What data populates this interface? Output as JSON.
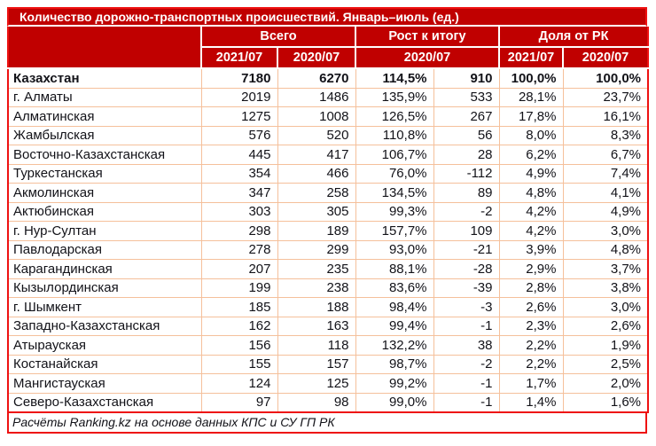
{
  "title": "Количество дорожно-транспортных происшествий. Январь–июль (ед.)",
  "footer": "Расчёты Ranking.kz на основе данных КПС и СУ ГП РК",
  "colors": {
    "header_bg": "#C00000",
    "outer_border": "#EE1111",
    "cell_border": "#F5C09B",
    "header_text": "#FFFFFF",
    "body_text": "#121218"
  },
  "chart_data": {
    "type": "table",
    "title": "Количество дорожно-транспортных происшествий. Январь–июль (ед.)",
    "source_note": "Расчёты Ranking.kz на основе данных КПС и СУ ГП РК",
    "groups": [
      {
        "label": "Всего",
        "sub": [
          "2021/07",
          "2020/07"
        ]
      },
      {
        "label": "Рост к итогу",
        "sub": [
          "2020/07"
        ]
      },
      {
        "label": "Доля от РК",
        "sub": [
          "2021/07",
          "2020/07"
        ]
      }
    ],
    "value_columns": [
      "Всего 2021/07",
      "Всего 2020/07",
      "Рост к итогу 2020/07 (%)",
      "Рост к итогу 2020/07 (абс.)",
      "Доля от РК 2021/07",
      "Доля от РК 2020/07"
    ],
    "rows": [
      {
        "region": "Казахстан",
        "bold": true,
        "values": [
          "7180",
          "6270",
          "114,5%",
          "910",
          "100,0%",
          "100,0%"
        ]
      },
      {
        "region": "г. Алматы",
        "bold": false,
        "values": [
          "2019",
          "1486",
          "135,9%",
          "533",
          "28,1%",
          "23,7%"
        ]
      },
      {
        "region": "Алматинская",
        "bold": false,
        "values": [
          "1275",
          "1008",
          "126,5%",
          "267",
          "17,8%",
          "16,1%"
        ]
      },
      {
        "region": "Жамбылская",
        "bold": false,
        "values": [
          "576",
          "520",
          "110,8%",
          "56",
          "8,0%",
          "8,3%"
        ]
      },
      {
        "region": "Восточно-Казахстанская",
        "bold": false,
        "values": [
          "445",
          "417",
          "106,7%",
          "28",
          "6,2%",
          "6,7%"
        ]
      },
      {
        "region": "Туркестанская",
        "bold": false,
        "values": [
          "354",
          "466",
          "76,0%",
          "-112",
          "4,9%",
          "7,4%"
        ]
      },
      {
        "region": "Акмолинская",
        "bold": false,
        "values": [
          "347",
          "258",
          "134,5%",
          "89",
          "4,8%",
          "4,1%"
        ]
      },
      {
        "region": "Актюбинская",
        "bold": false,
        "values": [
          "303",
          "305",
          "99,3%",
          "-2",
          "4,2%",
          "4,9%"
        ]
      },
      {
        "region": "г. Нур-Султан",
        "bold": false,
        "values": [
          "298",
          "189",
          "157,7%",
          "109",
          "4,2%",
          "3,0%"
        ]
      },
      {
        "region": "Павлодарская",
        "bold": false,
        "values": [
          "278",
          "299",
          "93,0%",
          "-21",
          "3,9%",
          "4,8%"
        ]
      },
      {
        "region": "Карагандинская",
        "bold": false,
        "values": [
          "207",
          "235",
          "88,1%",
          "-28",
          "2,9%",
          "3,7%"
        ]
      },
      {
        "region": "Кызылординская",
        "bold": false,
        "values": [
          "199",
          "238",
          "83,6%",
          "-39",
          "2,8%",
          "3,8%"
        ]
      },
      {
        "region": "г. Шымкент",
        "bold": false,
        "values": [
          "185",
          "188",
          "98,4%",
          "-3",
          "2,6%",
          "3,0%"
        ]
      },
      {
        "region": "Западно-Казахстанская",
        "bold": false,
        "values": [
          "162",
          "163",
          "99,4%",
          "-1",
          "2,3%",
          "2,6%"
        ]
      },
      {
        "region": "Атырауская",
        "bold": false,
        "values": [
          "156",
          "118",
          "132,2%",
          "38",
          "2,2%",
          "1,9%"
        ]
      },
      {
        "region": "Костанайская",
        "bold": false,
        "values": [
          "155",
          "157",
          "98,7%",
          "-2",
          "2,2%",
          "2,5%"
        ]
      },
      {
        "region": "Мангистауская",
        "bold": false,
        "values": [
          "124",
          "125",
          "99,2%",
          "-1",
          "1,7%",
          "2,0%"
        ]
      },
      {
        "region": "Северо-Казахстанская",
        "bold": false,
        "values": [
          "97",
          "98",
          "99,0%",
          "-1",
          "1,4%",
          "1,6%"
        ]
      }
    ]
  }
}
